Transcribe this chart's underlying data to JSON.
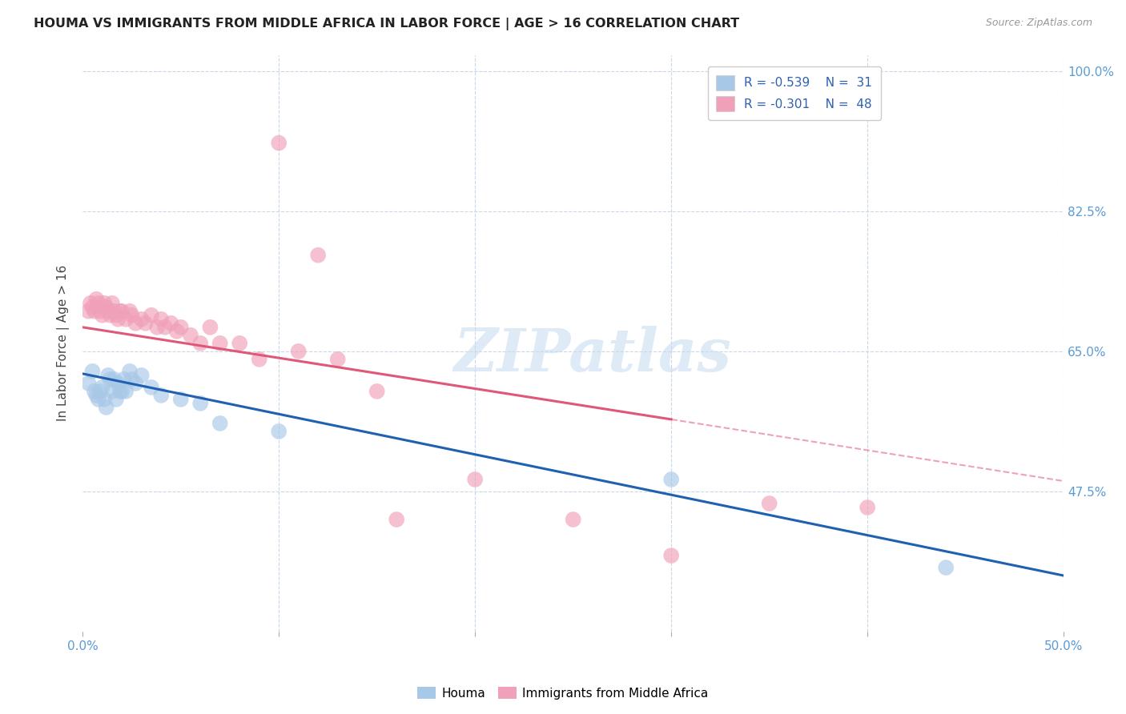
{
  "title": "HOUMA VS IMMIGRANTS FROM MIDDLE AFRICA IN LABOR FORCE | AGE > 16 CORRELATION CHART",
  "source": "Source: ZipAtlas.com",
  "ylabel": "In Labor Force | Age > 16",
  "xlim": [
    0.0,
    0.5
  ],
  "ylim": [
    0.3,
    1.02
  ],
  "xticks": [
    0.0,
    0.1,
    0.2,
    0.3,
    0.4,
    0.5
  ],
  "xticklabels": [
    "0.0%",
    "",
    "",
    "",
    "",
    "50.0%"
  ],
  "yticks": [
    0.475,
    0.65,
    0.825,
    1.0
  ],
  "yticklabels_right": [
    "47.5%",
    "65.0%",
    "82.5%",
    "100.0%"
  ],
  "legend_r1": "R = -0.539",
  "legend_n1": "N =  31",
  "legend_r2": "R = -0.301",
  "legend_n2": "N =  48",
  "color_blue": "#a8c8e8",
  "color_pink": "#f0a0b8",
  "color_blue_line": "#2060b0",
  "color_pink_line": "#e05878",
  "color_pink_dash": "#e05878",
  "color_axis_tick": "#5b9bd5",
  "color_grid": "#c8d8e8",
  "watermark_text": "ZIPatlas",
  "houma_x": [
    0.003,
    0.005,
    0.006,
    0.007,
    0.008,
    0.009,
    0.01,
    0.011,
    0.012,
    0.013,
    0.014,
    0.015,
    0.016,
    0.017,
    0.018,
    0.019,
    0.02,
    0.021,
    0.022,
    0.024,
    0.025,
    0.027,
    0.03,
    0.035,
    0.04,
    0.05,
    0.06,
    0.07,
    0.1,
    0.3,
    0.44
  ],
  "houma_y": [
    0.61,
    0.625,
    0.6,
    0.595,
    0.59,
    0.6,
    0.605,
    0.59,
    0.58,
    0.62,
    0.615,
    0.6,
    0.615,
    0.59,
    0.61,
    0.6,
    0.6,
    0.615,
    0.6,
    0.625,
    0.615,
    0.61,
    0.62,
    0.605,
    0.595,
    0.59,
    0.585,
    0.56,
    0.55,
    0.49,
    0.38
  ],
  "middle_africa_x": [
    0.003,
    0.004,
    0.005,
    0.006,
    0.007,
    0.008,
    0.009,
    0.01,
    0.011,
    0.012,
    0.013,
    0.014,
    0.015,
    0.016,
    0.017,
    0.018,
    0.019,
    0.02,
    0.022,
    0.024,
    0.025,
    0.027,
    0.03,
    0.032,
    0.035,
    0.038,
    0.04,
    0.042,
    0.045,
    0.048,
    0.05,
    0.055,
    0.06,
    0.065,
    0.07,
    0.08,
    0.09,
    0.1,
    0.11,
    0.12,
    0.13,
    0.15,
    0.16,
    0.2,
    0.25,
    0.3,
    0.35,
    0.4
  ],
  "middle_africa_y": [
    0.7,
    0.71,
    0.705,
    0.7,
    0.715,
    0.71,
    0.7,
    0.695,
    0.71,
    0.705,
    0.7,
    0.695,
    0.71,
    0.7,
    0.695,
    0.69,
    0.7,
    0.7,
    0.69,
    0.7,
    0.695,
    0.685,
    0.69,
    0.685,
    0.695,
    0.68,
    0.69,
    0.68,
    0.685,
    0.675,
    0.68,
    0.67,
    0.66,
    0.68,
    0.66,
    0.66,
    0.64,
    0.91,
    0.65,
    0.77,
    0.64,
    0.6,
    0.44,
    0.49,
    0.44,
    0.395,
    0.46,
    0.455
  ],
  "blue_line_x0": 0.0,
  "blue_line_y0": 0.622,
  "blue_line_x1": 0.5,
  "blue_line_y1": 0.37,
  "pink_line_x0": 0.0,
  "pink_line_y0": 0.68,
  "pink_line_x1_solid": 0.3,
  "pink_line_y1_solid": 0.565,
  "pink_line_x1_dash": 0.5,
  "pink_line_y1_dash": 0.488
}
